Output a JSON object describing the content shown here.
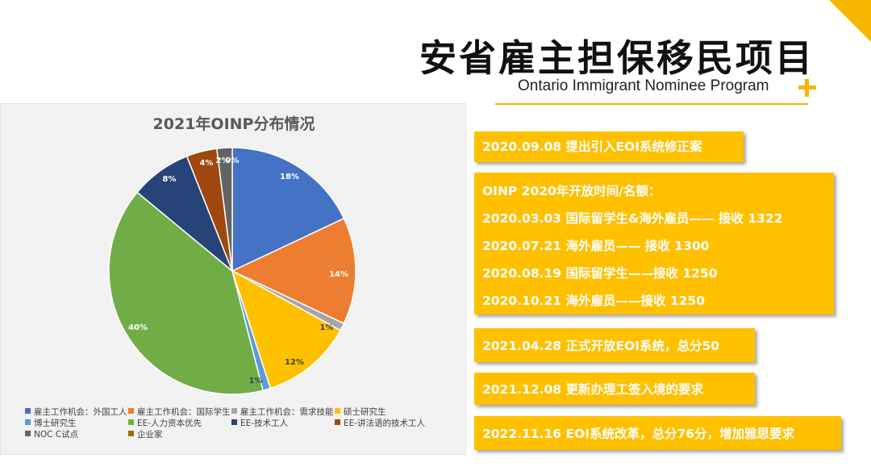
{
  "header": {
    "title": "安省雇主担保移民项目",
    "subtitle": "Ontario Immigrant Nominee Program"
  },
  "chart_data": {
    "type": "pie",
    "title": "2021年OINP分布情况",
    "categories": [
      "雇主工作机会：外国工人",
      "雇主工作机会：国际学生",
      "雇主工作机会：需求技能",
      "硕士研究生",
      "博士研究生",
      "EE-人力资本优先",
      "EE-技术工人",
      "EE-讲法语的技术工人",
      "NOC C试点",
      "企业家"
    ],
    "values": [
      18,
      14,
      1,
      12,
      1,
      40,
      8,
      4,
      2,
      0
    ],
    "labels": [
      "18%",
      "14%",
      "1%",
      "12%",
      "1%",
      "40%",
      "8%",
      "4%",
      "2%",
      "0%"
    ],
    "colors": [
      "#4472c4",
      "#ed7d31",
      "#a5a5a5",
      "#ffc000",
      "#5b9bd5",
      "#70ad47",
      "#264478",
      "#9e480e",
      "#636363",
      "#997300"
    ],
    "legend_position": "bottom"
  },
  "timeline": {
    "items": [
      {
        "lines": [
          "2020.09.08 提出引入EOI系统修正案"
        ]
      },
      {
        "lines": [
          "OINP 2020年开放时间/名额：",
          "2020.03.03 国际留学生&海外雇员—— 接收 1322",
          "2020.07.21 海外雇员—— 接收 1300",
          "2020.08.19 国际留学生——接收 1250",
          "2020.10.21 海外雇员——接收 1250"
        ]
      },
      {
        "lines": [
          "2021.04.28 正式开放EOI系统，总分50"
        ]
      },
      {
        "lines": [
          "2021.12.08 更新办理工签入境的要求"
        ]
      },
      {
        "lines": [
          "2022.11.16 EOI系统改革，总分76分，增加雅思要求"
        ]
      }
    ]
  }
}
